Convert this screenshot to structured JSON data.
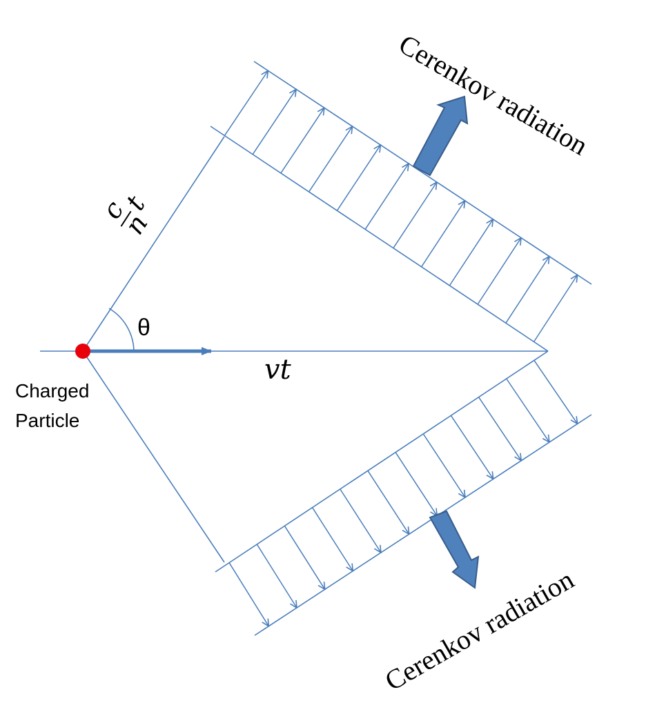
{
  "labels": {
    "radiation_top": "Cerenkov radiation",
    "radiation_bottom": "Cerenkov radiation",
    "particle_line1": "Charged",
    "particle_line2": "Particle",
    "angle": "θ",
    "velocity_distance": "vt",
    "light_distance_c": "c",
    "light_distance_n": "n",
    "light_distance_t": "t"
  },
  "colors": {
    "line": "#4a7ebb",
    "big_arrow_fill": "#4f81bd",
    "big_arrow_stroke": "#385d8a",
    "particle": "#e8000b",
    "text": "#000000"
  },
  "icons": {
    "particle": "red-dot",
    "radiation": "block-arrow"
  }
}
